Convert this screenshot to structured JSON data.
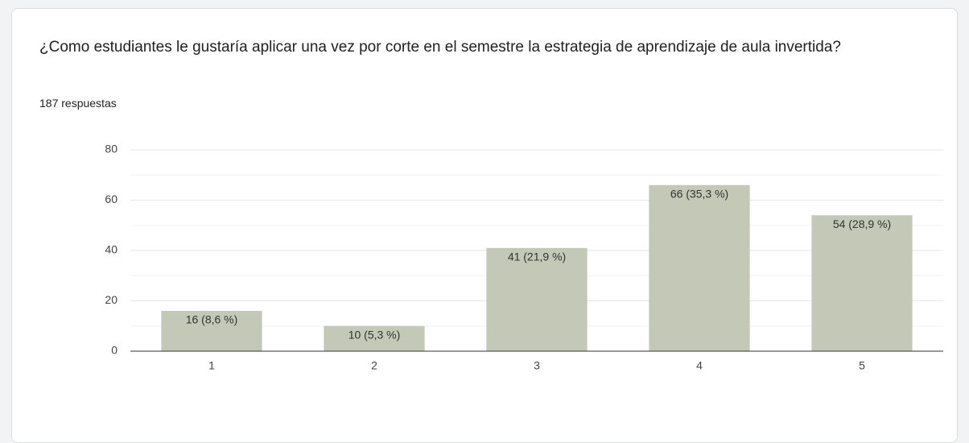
{
  "chart_data": {
    "type": "bar",
    "title": "¿Como estudiantes le gustaría aplicar una vez por corte en el semestre la estrategia de aprendizaje de aula invertida?",
    "subtitle": "187 respuestas",
    "categories": [
      "1",
      "2",
      "3",
      "4",
      "5"
    ],
    "values": [
      16,
      10,
      41,
      66,
      54
    ],
    "value_labels": [
      "16 (8,6 %)",
      "10 (5,3 %)",
      "41 (21,9 %)",
      "66 (35,3 %)",
      "54 (28,9 %)"
    ],
    "color": "#c4c8b6",
    "ylim": [
      0,
      80
    ],
    "yticks": [
      0,
      20,
      40,
      60,
      80
    ],
    "minor_yticks": [
      10,
      30,
      50,
      70
    ],
    "grid": true
  }
}
